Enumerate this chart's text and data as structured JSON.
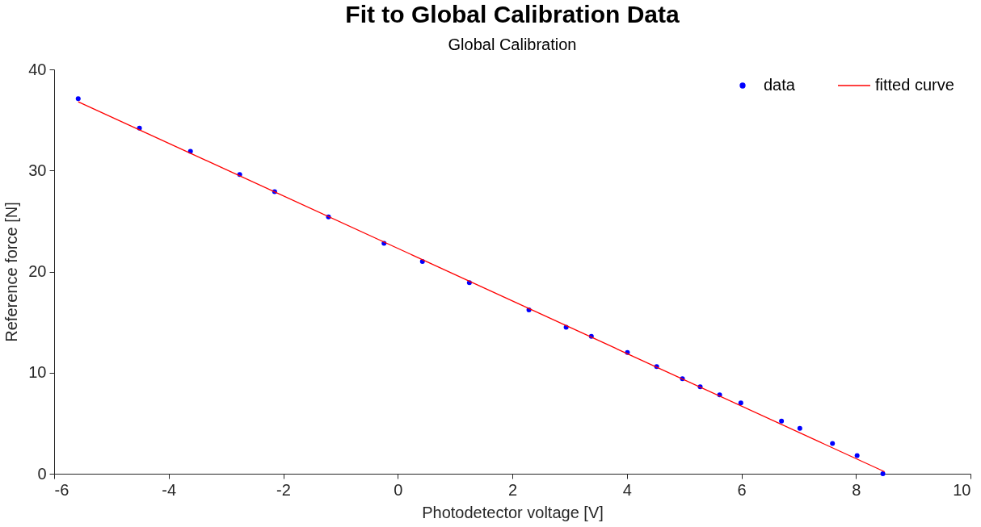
{
  "chart_data": {
    "type": "scatter",
    "title": "Fit to Global Calibration Data",
    "subtitle": "Global Calibration",
    "xlabel": "Photodetector voltage [V]",
    "ylabel": "Reference force [N]",
    "xlim": [
      -6,
      10
    ],
    "xticks": [
      {
        "value": -6,
        "label": "-6"
      },
      {
        "value": -4,
        "label": "-4"
      },
      {
        "value": -2,
        "label": "-2"
      },
      0,
      2,
      4,
      6,
      8,
      10
    ],
    "ylim": [
      0,
      40
    ],
    "yticks": [
      0,
      10,
      20,
      30,
      40
    ],
    "grid": false,
    "legend": "top right",
    "marker": "circle",
    "series": [
      {
        "name": "data",
        "type": "scatter",
        "color": "#0000ff",
        "x": [
          -5.58,
          -4.51,
          -3.62,
          -2.76,
          -2.15,
          -1.21,
          -0.24,
          0.43,
          1.25,
          2.29,
          2.94,
          3.38,
          4.01,
          4.52,
          4.97,
          5.28,
          5.62,
          5.99,
          6.7,
          7.02,
          7.59,
          8.02,
          8.47
        ],
        "values": [
          37.1,
          34.2,
          31.9,
          29.6,
          27.9,
          25.4,
          22.8,
          21.0,
          18.9,
          16.2,
          14.5,
          13.6,
          12.0,
          10.6,
          9.4,
          8.6,
          7.8,
          7.0,
          5.2,
          4.5,
          3.0,
          1.8,
          0.0
        ]
      },
      {
        "name": "fitted curve",
        "type": "line",
        "color": "#ff0000",
        "line_style": "solid",
        "marker": "none",
        "x": [
          -5.58,
          8.5
        ],
        "values": [
          36.8,
          0.2
        ]
      }
    ]
  }
}
